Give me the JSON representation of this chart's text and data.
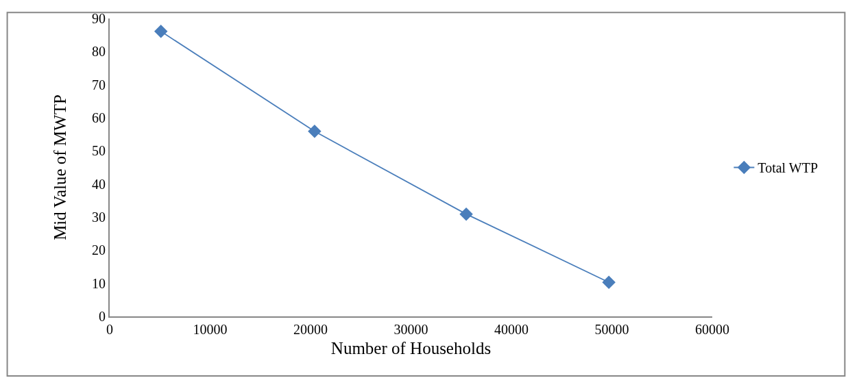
{
  "chart_data": {
    "type": "line",
    "xlabel": "Number of Households",
    "ylabel": "Mid Value of MWTP",
    "x": [
      5100,
      20400,
      35500,
      49700
    ],
    "series": [
      {
        "name": "Total WTP",
        "color": "#4a7ebb",
        "values": [
          86.1,
          55.9,
          30.9,
          10.3
        ]
      }
    ],
    "xlim": [
      0,
      60000
    ],
    "xticks": [
      0,
      10000,
      20000,
      30000,
      40000,
      50000,
      60000
    ],
    "ylim": [
      0,
      90
    ],
    "yticks": [
      0,
      10,
      20,
      30,
      40,
      50,
      60,
      70,
      80,
      90
    ],
    "legend": "right",
    "marker": "diamond",
    "line_style": "solid"
  }
}
